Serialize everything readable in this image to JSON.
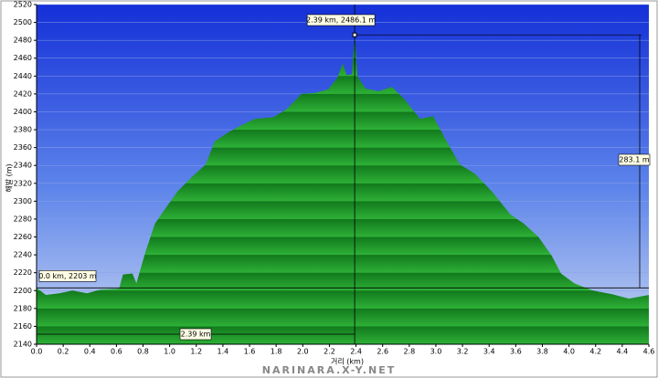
{
  "chart_data": {
    "type": "area",
    "y_label": "해발 (m)",
    "x_label": "거리 (km)",
    "x": [
      0,
      0.07,
      0.17,
      0.27,
      0.38,
      0.48,
      0.62,
      0.65,
      0.72,
      0.75,
      0.82,
      0.89,
      0.96,
      1.06,
      1.16,
      1.27,
      1.34,
      1.44,
      1.54,
      1.64,
      1.78,
      1.88,
      1.99,
      2.09,
      2.19,
      2.26,
      2.3,
      2.33,
      2.37,
      2.39,
      2.41,
      2.47,
      2.57,
      2.67,
      2.77,
      2.88,
      2.98,
      3.08,
      3.18,
      3.29,
      3.42,
      3.56,
      3.66,
      3.77,
      3.87,
      3.94,
      4.04,
      4.18,
      4.32,
      4.45,
      4.6
    ],
    "values": [
      2203,
      2195,
      2197,
      2200,
      2197,
      2201,
      2202,
      2218,
      2219,
      2208,
      2244,
      2275,
      2290,
      2311,
      2326,
      2341,
      2367,
      2377,
      2385,
      2392,
      2394,
      2403,
      2420,
      2421,
      2425,
      2438,
      2454,
      2441,
      2442,
      2486.1,
      2440,
      2426,
      2423,
      2428,
      2413,
      2392,
      2395,
      2367,
      2341,
      2331,
      2311,
      2285,
      2275,
      2260,
      2239,
      2219,
      2208,
      2200,
      2196,
      2191,
      2195
    ],
    "color": "#1e9a2a",
    "xlim": [
      0,
      4.6
    ],
    "ylim": [
      2140,
      2520
    ],
    "xticks": [
      {
        "value": 0,
        "label": "0.0"
      },
      0.2,
      0.4,
      0.6,
      0.8,
      {
        "value": 1,
        "label": "1.0"
      },
      1.2,
      1.4,
      1.6,
      1.8,
      {
        "value": 2,
        "label": "2.0"
      },
      2.2,
      2.4,
      2.6,
      2.8,
      {
        "value": 3,
        "label": "3.0"
      },
      3.2,
      3.4,
      3.6,
      3.8,
      {
        "value": 4,
        "label": "4.0"
      },
      4.2,
      4.4,
      4.6
    ],
    "yticks": [
      2140,
      2160,
      2180,
      2200,
      2220,
      2240,
      2260,
      2280,
      2300,
      2320,
      2340,
      2360,
      2380,
      2400,
      2420,
      2440,
      2460,
      2480,
      2500,
      2520
    ],
    "annotations": {
      "peak": "2.39 km, 2486.1 m",
      "start": "0.0 km, 2203 m",
      "distance": "2.39 km",
      "gain": "283.1 m"
    },
    "watermark": "NARINARA.X-Y.NET"
  }
}
